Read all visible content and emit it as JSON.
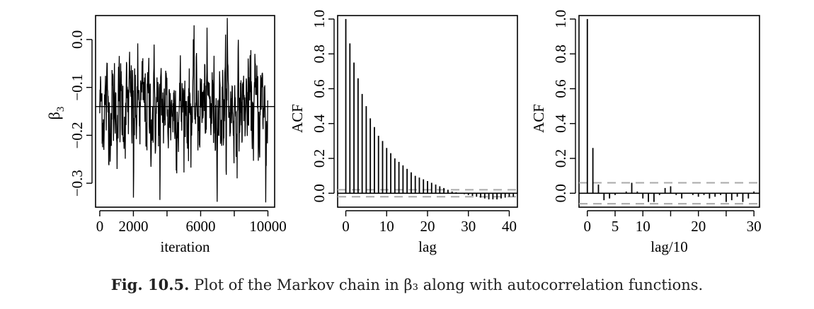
{
  "caption": {
    "label": "Fig. 10.5.",
    "text": "Plot of the Markov chain in β₃ along with autocorrelation functions."
  },
  "chart_data": [
    {
      "type": "line",
      "title": "",
      "xlabel": "iteration",
      "ylabel": "β3",
      "xlim": [
        0,
        10000
      ],
      "ylim": [
        -0.35,
        0.05
      ],
      "x_ticks": [
        0,
        2000,
        6000,
        10000
      ],
      "x_minor_ticks": [
        4000,
        8000
      ],
      "y_ticks": [
        0.0,
        -0.1,
        -0.2,
        -0.3
      ],
      "y_tick_labels": [
        "0.0",
        "−0.1",
        "−0.2",
        "−0.3"
      ],
      "mean_line": -0.14,
      "trace_summary": {
        "n": 10000,
        "center": -0.14,
        "min": -0.33,
        "max": 0.045
      },
      "grid": false
    },
    {
      "type": "bar",
      "title": "",
      "xlabel": "lag",
      "ylabel": "ACF",
      "xlim": [
        -2,
        42
      ],
      "ylim": [
        -0.08,
        1.02
      ],
      "x_ticks": [
        0,
        10,
        20,
        30,
        40
      ],
      "y_ticks": [
        0.0,
        0.2,
        0.4,
        0.6,
        0.8,
        1.0
      ],
      "y_tick_labels": [
        "0.0",
        "0.2",
        "0.4",
        "0.6",
        "0.8",
        "1.0"
      ],
      "lags": [
        0,
        1,
        2,
        3,
        4,
        5,
        6,
        7,
        8,
        9,
        10,
        11,
        12,
        13,
        14,
        15,
        16,
        17,
        18,
        19,
        20,
        21,
        22,
        23,
        24,
        25,
        26,
        27,
        28,
        29,
        30,
        31,
        32,
        33,
        34,
        35,
        36,
        37,
        38,
        39,
        40,
        41
      ],
      "acf": [
        1.0,
        0.86,
        0.75,
        0.66,
        0.57,
        0.5,
        0.43,
        0.38,
        0.33,
        0.3,
        0.26,
        0.23,
        0.2,
        0.18,
        0.16,
        0.14,
        0.12,
        0.1,
        0.09,
        0.08,
        0.07,
        0.06,
        0.05,
        0.04,
        0.03,
        0.02,
        0.01,
        0.005,
        0.0,
        -0.005,
        -0.01,
        -0.015,
        -0.02,
        -0.025,
        -0.03,
        -0.035,
        -0.035,
        -0.035,
        -0.03,
        -0.025,
        -0.02,
        -0.02
      ],
      "confidence_band": [
        0.02,
        -0.02
      ],
      "grid": false
    },
    {
      "type": "bar",
      "title": "",
      "xlabel": "lag/10",
      "ylabel": "ACF",
      "xlim": [
        -1.5,
        31
      ],
      "ylim": [
        -0.08,
        1.02
      ],
      "x_ticks": [
        0,
        5,
        10,
        20,
        30
      ],
      "x_minor_ticks": [
        15,
        25
      ],
      "y_ticks": [
        0.0,
        0.2,
        0.4,
        0.6,
        0.8,
        1.0
      ],
      "y_tick_labels": [
        "0.0",
        "0.2",
        "0.4",
        "0.6",
        "0.8",
        "1.0"
      ],
      "lags": [
        0,
        1,
        2,
        3,
        4,
        5,
        6,
        7,
        8,
        9,
        10,
        11,
        12,
        13,
        14,
        15,
        16,
        17,
        18,
        19,
        20,
        21,
        22,
        23,
        24,
        25,
        26,
        27,
        28,
        29,
        30
      ],
      "acf": [
        1.0,
        0.26,
        0.05,
        -0.04,
        -0.03,
        -0.01,
        0.0,
        0.01,
        0.06,
        0.01,
        -0.03,
        -0.05,
        -0.05,
        -0.01,
        0.03,
        0.04,
        -0.01,
        -0.03,
        0.0,
        -0.01,
        -0.02,
        -0.01,
        -0.03,
        -0.02,
        -0.01,
        -0.05,
        -0.04,
        -0.02,
        -0.05,
        -0.03,
        0.01
      ],
      "confidence_band": [
        0.06,
        -0.06
      ],
      "grid": false
    }
  ]
}
